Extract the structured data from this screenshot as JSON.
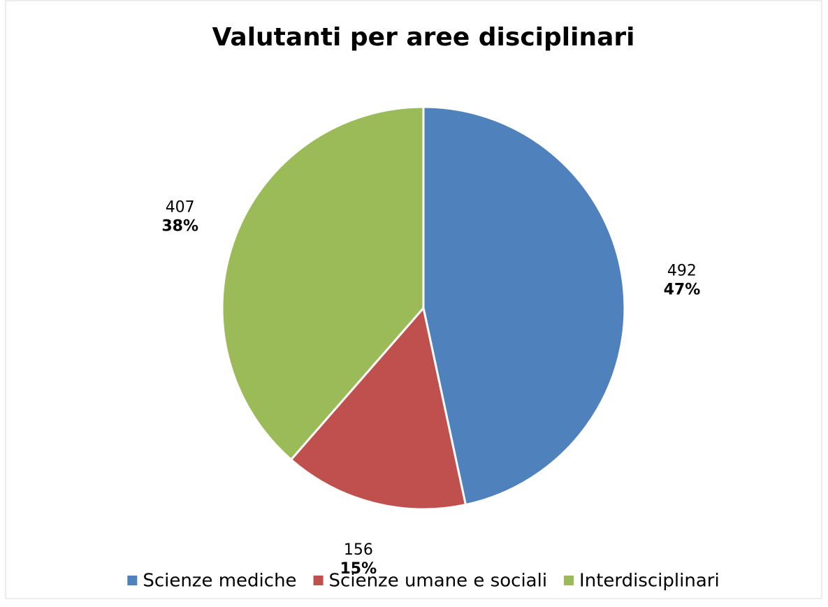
{
  "chart_data": {
    "type": "pie",
    "title": "Valutanti per aree disciplinari",
    "categories": [
      "Scienze mediche",
      "Scienze umane e sociali",
      "Interdisciplinari"
    ],
    "values": [
      492,
      156,
      407
    ],
    "percent_labels": [
      "47%",
      "15%",
      "38%"
    ],
    "colors": [
      "#4f81bd",
      "#c0504d",
      "#9bbb59"
    ],
    "legend": "bottom"
  }
}
